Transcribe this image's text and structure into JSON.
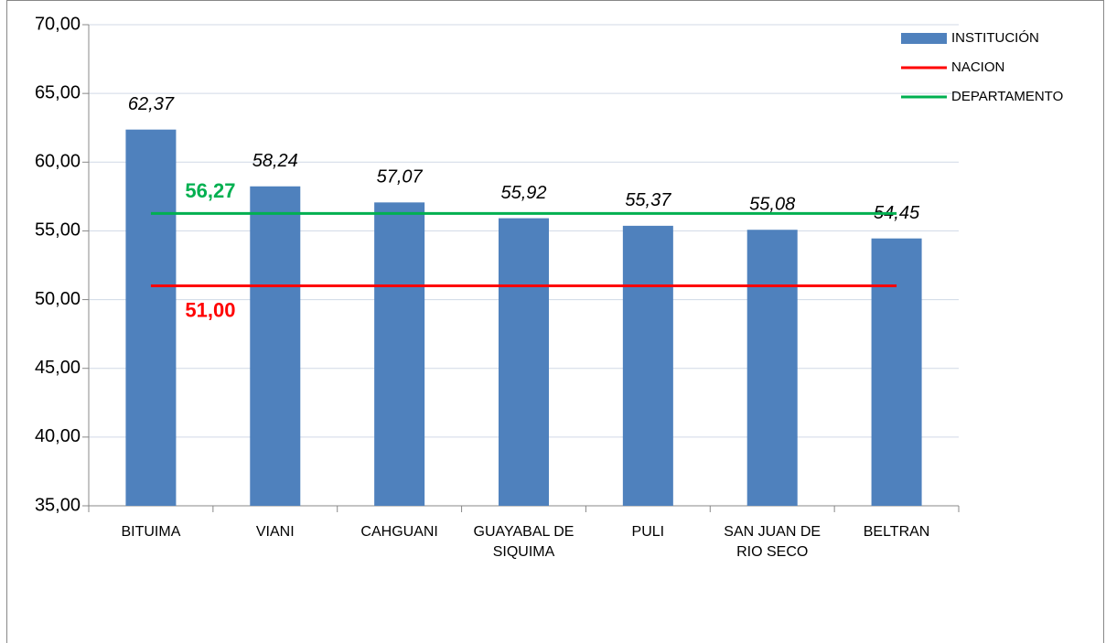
{
  "chart_data": {
    "type": "bar",
    "categories": [
      "BITUIMA",
      "VIANI",
      "CAHGUANI",
      "GUAYABAL DE SIQUIMA",
      "PULI",
      "SAN JUAN DE RIO SECO",
      "BELTRAN"
    ],
    "series": [
      {
        "name": "INSTITUCIÓN",
        "type": "bar",
        "color": "#4f81bd",
        "values": [
          62.37,
          58.24,
          57.07,
          55.92,
          55.37,
          55.08,
          54.45
        ],
        "value_labels": [
          "62,37",
          "58,24",
          "57,07",
          "55,92",
          "55,37",
          "55,08",
          "54,45"
        ]
      },
      {
        "name": "NACION",
        "type": "line",
        "color": "#ff0000",
        "values": [
          51,
          51,
          51,
          51,
          51,
          51,
          51
        ],
        "value_labels": [
          "51,00",
          null,
          null,
          null,
          null,
          null,
          null
        ]
      },
      {
        "name": "DEPARTAMENTO",
        "type": "line",
        "color": "#00b050",
        "values": [
          56.27,
          56.27,
          56.27,
          56.27,
          56.27,
          56.27,
          56.27
        ],
        "value_labels": [
          "56,27",
          null,
          null,
          null,
          null,
          null,
          null
        ]
      }
    ],
    "ylim": [
      35,
      70
    ],
    "yticks": [
      {
        "value": 35,
        "label": "35,00"
      },
      {
        "value": 40,
        "label": "40,00"
      },
      {
        "value": 45,
        "label": "45,00"
      },
      {
        "value": 50,
        "label": "50,00"
      },
      {
        "value": 55,
        "label": "55,00"
      },
      {
        "value": 60,
        "label": "60,00"
      },
      {
        "value": 65,
        "label": "65,00"
      },
      {
        "value": 70,
        "label": "70,00"
      }
    ],
    "grid": true,
    "legend": "top-right"
  }
}
